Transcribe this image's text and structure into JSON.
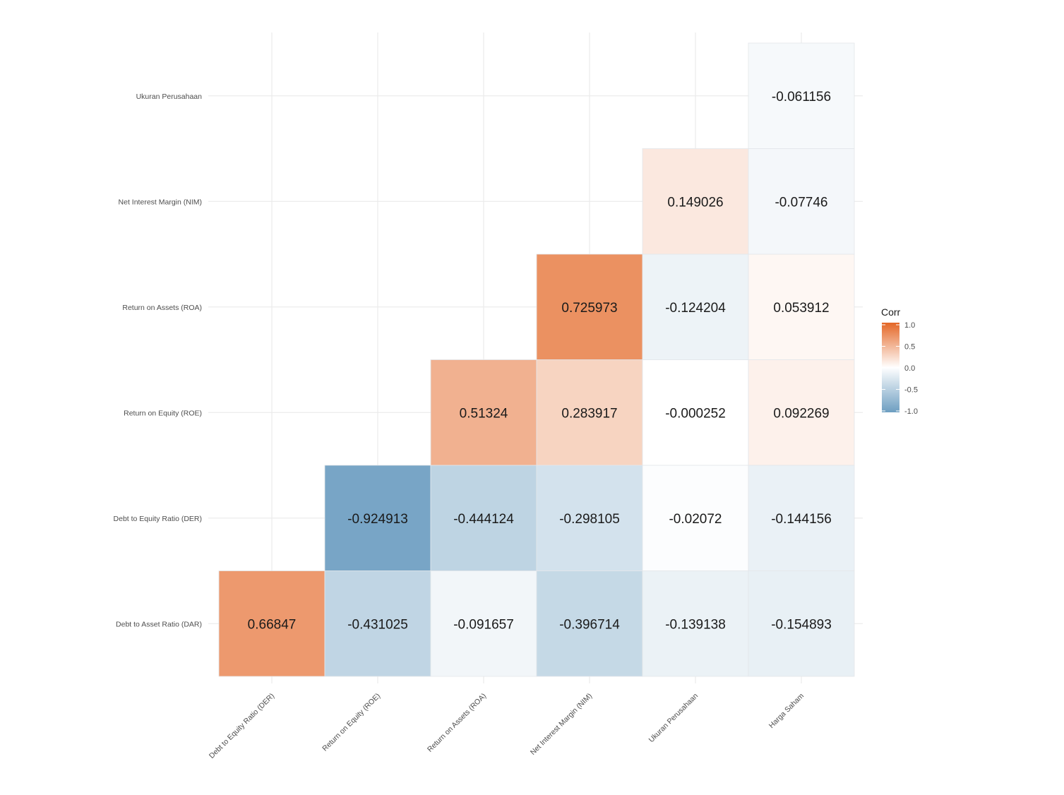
{
  "chart_data": {
    "type": "heatmap",
    "title": "",
    "xlabel": "",
    "ylabel": "",
    "x_categories": [
      "Debt to Equity Ratio (DER)",
      "Return on Equity (ROE)",
      "Return on Assets (ROA)",
      "Net Interest Margin (NIM)",
      "Ukuran Perusahaan",
      "Harga Saham"
    ],
    "y_categories": [
      "Debt to Asset Ratio (DAR)",
      "Debt to Equity Ratio (DER)",
      "Return on Equity (ROE)",
      "Return on Assets (ROA)",
      "Net Interest Margin (NIM)",
      "Ukuran Perusahaan"
    ],
    "cells": [
      {
        "x": "Debt to Equity Ratio (DER)",
        "y": "Debt to Asset Ratio (DAR)",
        "value": 0.66847,
        "label": "0.66847"
      },
      {
        "x": "Return on Equity (ROE)",
        "y": "Debt to Asset Ratio (DAR)",
        "value": -0.431025,
        "label": "-0.431025"
      },
      {
        "x": "Return on Assets (ROA)",
        "y": "Debt to Asset Ratio (DAR)",
        "value": -0.091657,
        "label": "-0.091657"
      },
      {
        "x": "Net Interest Margin (NIM)",
        "y": "Debt to Asset Ratio (DAR)",
        "value": -0.396714,
        "label": "-0.396714"
      },
      {
        "x": "Ukuran Perusahaan",
        "y": "Debt to Asset Ratio (DAR)",
        "value": -0.139138,
        "label": "-0.139138"
      },
      {
        "x": "Harga Saham",
        "y": "Debt to Asset Ratio (DAR)",
        "value": -0.154893,
        "label": "-0.154893"
      },
      {
        "x": "Return on Equity (ROE)",
        "y": "Debt to Equity Ratio (DER)",
        "value": -0.924913,
        "label": "-0.924913"
      },
      {
        "x": "Return on Assets (ROA)",
        "y": "Debt to Equity Ratio (DER)",
        "value": -0.444124,
        "label": "-0.444124"
      },
      {
        "x": "Net Interest Margin (NIM)",
        "y": "Debt to Equity Ratio (DER)",
        "value": -0.298105,
        "label": "-0.298105"
      },
      {
        "x": "Ukuran Perusahaan",
        "y": "Debt to Equity Ratio (DER)",
        "value": -0.02072,
        "label": "-0.02072"
      },
      {
        "x": "Harga Saham",
        "y": "Debt to Equity Ratio (DER)",
        "value": -0.144156,
        "label": "-0.144156"
      },
      {
        "x": "Return on Assets (ROA)",
        "y": "Return on Equity (ROE)",
        "value": 0.51324,
        "label": "0.51324"
      },
      {
        "x": "Net Interest Margin (NIM)",
        "y": "Return on Equity (ROE)",
        "value": 0.283917,
        "label": "0.283917"
      },
      {
        "x": "Ukuran Perusahaan",
        "y": "Return on Equity (ROE)",
        "value": -0.000252,
        "label": "-0.000252"
      },
      {
        "x": "Harga Saham",
        "y": "Return on Equity (ROE)",
        "value": 0.092269,
        "label": "0.092269"
      },
      {
        "x": "Net Interest Margin (NIM)",
        "y": "Return on Assets (ROA)",
        "value": 0.725973,
        "label": "0.725973"
      },
      {
        "x": "Ukuran Perusahaan",
        "y": "Return on Assets (ROA)",
        "value": -0.124204,
        "label": "-0.124204"
      },
      {
        "x": "Harga Saham",
        "y": "Return on Assets (ROA)",
        "value": 0.053912,
        "label": "0.053912"
      },
      {
        "x": "Ukuran Perusahaan",
        "y": "Net Interest Margin (NIM)",
        "value": 0.149026,
        "label": "0.149026"
      },
      {
        "x": "Harga Saham",
        "y": "Net Interest Margin (NIM)",
        "value": -0.07746,
        "label": "-0.07746"
      },
      {
        "x": "Harga Saham",
        "y": "Ukuran Perusahaan",
        "value": -0.061156,
        "label": "-0.061156"
      }
    ],
    "color_scale": {
      "low": "#6D9EC1",
      "mid": "#FFFFFF",
      "high": "#E46726",
      "limits": [
        -1,
        1
      ]
    },
    "legend": {
      "title": "Corr",
      "position": "right",
      "ticks": [
        1.0,
        0.5,
        0.0,
        -0.5,
        -1.0
      ],
      "tick_labels": [
        "1.0",
        "0.5",
        "0.0",
        "-0.5",
        "-1.0"
      ]
    },
    "grid": true
  }
}
